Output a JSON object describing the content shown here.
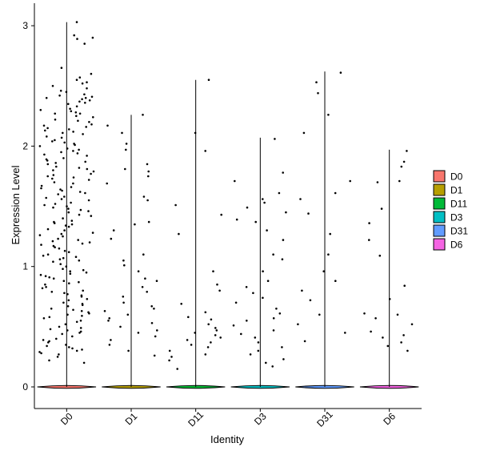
{
  "chart_data": {
    "type": "violin",
    "xlabel": "Identity",
    "ylabel": "Expression Level",
    "ylim": [
      -0.18,
      3.06
    ],
    "yticks": [
      0,
      1,
      2,
      3
    ],
    "categories": [
      "D0",
      "D1",
      "D11",
      "D3",
      "D31",
      "D6"
    ],
    "violin_max": [
      3.03,
      2.26,
      2.55,
      2.07,
      2.62,
      1.97
    ],
    "nonzero_points": [
      [
        3.03,
        2.92,
        2.9,
        2.89,
        2.85,
        2.65,
        2.6,
        2.57,
        2.55,
        2.53,
        2.52,
        2.5,
        2.48,
        2.46,
        2.45,
        2.42,
        2.41,
        2.4,
        2.39,
        2.38,
        2.37,
        2.35,
        2.33,
        2.31,
        2.3,
        2.28,
        2.27,
        2.25,
        2.22,
        2.21,
        2.2,
        2.18,
        2.16,
        2.15,
        2.13,
        2.12,
        2.1,
        2.08,
        2.07,
        2.05,
        2.03,
        2.02,
        2.0,
        1.98,
        1.97,
        1.95,
        1.94,
        1.93,
        1.92,
        1.9,
        1.88,
        1.87,
        1.85,
        1.83,
        1.82,
        1.8,
        1.79,
        1.77,
        1.75,
        1.74,
        1.72,
        1.7,
        1.69,
        1.67,
        1.65,
        1.64,
        1.62,
        1.61,
        1.6,
        1.58,
        1.57,
        1.55,
        1.53,
        1.52,
        1.5,
        1.48,
        1.47,
        1.45,
        1.43,
        1.42,
        1.4,
        1.38,
        1.36,
        1.35,
        1.33,
        1.31,
        1.3,
        1.28,
        1.26,
        1.25,
        1.23,
        1.21,
        1.2,
        1.18,
        1.16,
        1.15,
        1.13,
        1.12,
        1.1,
        1.09,
        1.07,
        1.05,
        1.04,
        1.02,
        1.0,
        0.98,
        0.97,
        0.95,
        0.93,
        0.92,
        0.9,
        0.88,
        0.87,
        0.85,
        0.83,
        0.82,
        0.8,
        0.78,
        0.77,
        0.75,
        0.73,
        0.72,
        0.7,
        0.69,
        0.67,
        0.65,
        0.64,
        0.62,
        0.6,
        0.59,
        0.57,
        0.55,
        0.54,
        0.52,
        0.5,
        0.49,
        0.47,
        0.45,
        0.44,
        0.42,
        0.4,
        0.39,
        0.37,
        0.35,
        0.34,
        0.32,
        0.3,
        0.28,
        0.27,
        0.25,
        0.22,
        0.2,
        2.36,
        2.24,
        2.11,
        1.96,
        1.81,
        1.66,
        1.51,
        1.37,
        1.22,
        1.08,
        0.94,
        0.79,
        0.63,
        0.48,
        0.33,
        2.43,
        2.29,
        2.17,
        2.04,
        1.89,
        1.76,
        1.63,
        1.49,
        1.34,
        1.19,
        1.06,
        0.91,
        0.76,
        0.61,
        0.46,
        0.31,
        2.27,
        2.01,
        1.73,
        1.46,
        1.17,
        0.86,
        0.58,
        0.29,
        2.4,
        2.14,
        1.86,
        1.56,
        1.27,
        0.96,
        0.68,
        0.38
      ],
      [
        2.26,
        2.17,
        2.11,
        2.02,
        1.97,
        1.85,
        1.81,
        1.79,
        1.75,
        1.69,
        1.58,
        1.55,
        1.37,
        1.35,
        1.3,
        1.23,
        1.1,
        1.05,
        1.01,
        0.96,
        0.9,
        0.88,
        0.83,
        0.79,
        0.75,
        0.7,
        0.67,
        0.65,
        0.63,
        0.6,
        0.57,
        0.55,
        0.53,
        0.5,
        0.47,
        0.45,
        0.42,
        0.39,
        0.35,
        0.3,
        0.26
      ],
      [
        2.55,
        2.11,
        1.96,
        1.51,
        1.43,
        1.27,
        0.96,
        0.85,
        0.8,
        0.69,
        0.62,
        0.58,
        0.56,
        0.52,
        0.49,
        0.47,
        0.45,
        0.43,
        0.41,
        0.39,
        0.37,
        0.35,
        0.33,
        0.3,
        0.27,
        0.25,
        0.22,
        0.15
      ],
      [
        2.06,
        1.78,
        1.71,
        1.61,
        1.56,
        1.53,
        1.49,
        1.45,
        1.39,
        1.37,
        1.3,
        1.22,
        1.1,
        1.06,
        0.96,
        0.88,
        0.83,
        0.78,
        0.74,
        0.7,
        0.65,
        0.61,
        0.57,
        0.55,
        0.51,
        0.47,
        0.44,
        0.41,
        0.37,
        0.33,
        0.3,
        0.27,
        0.23,
        0.2,
        0.17
      ],
      [
        2.61,
        2.53,
        2.44,
        2.26,
        2.11,
        1.71,
        1.61,
        1.56,
        1.44,
        1.27,
        1.1,
        0.96,
        0.88,
        0.8,
        0.72,
        0.6,
        0.52,
        0.45,
        0.38
      ],
      [
        1.96,
        1.87,
        1.83,
        1.7,
        1.71,
        1.48,
        1.36,
        1.22,
        1.09,
        0.84,
        0.73,
        0.61,
        0.6,
        0.57,
        0.52,
        0.46,
        0.43,
        0.41,
        0.37,
        0.34,
        0.3
      ]
    ],
    "legend": {
      "placement": "right",
      "entries": [
        {
          "label": "D0",
          "color": "#F8766D"
        },
        {
          "label": "D1",
          "color": "#B79F00"
        },
        {
          "label": "D11",
          "color": "#00BA38"
        },
        {
          "label": "D3",
          "color": "#00BFC4"
        },
        {
          "label": "D31",
          "color": "#619CFF"
        },
        {
          "label": "D6",
          "color": "#F564E3"
        }
      ]
    },
    "grid": false
  }
}
